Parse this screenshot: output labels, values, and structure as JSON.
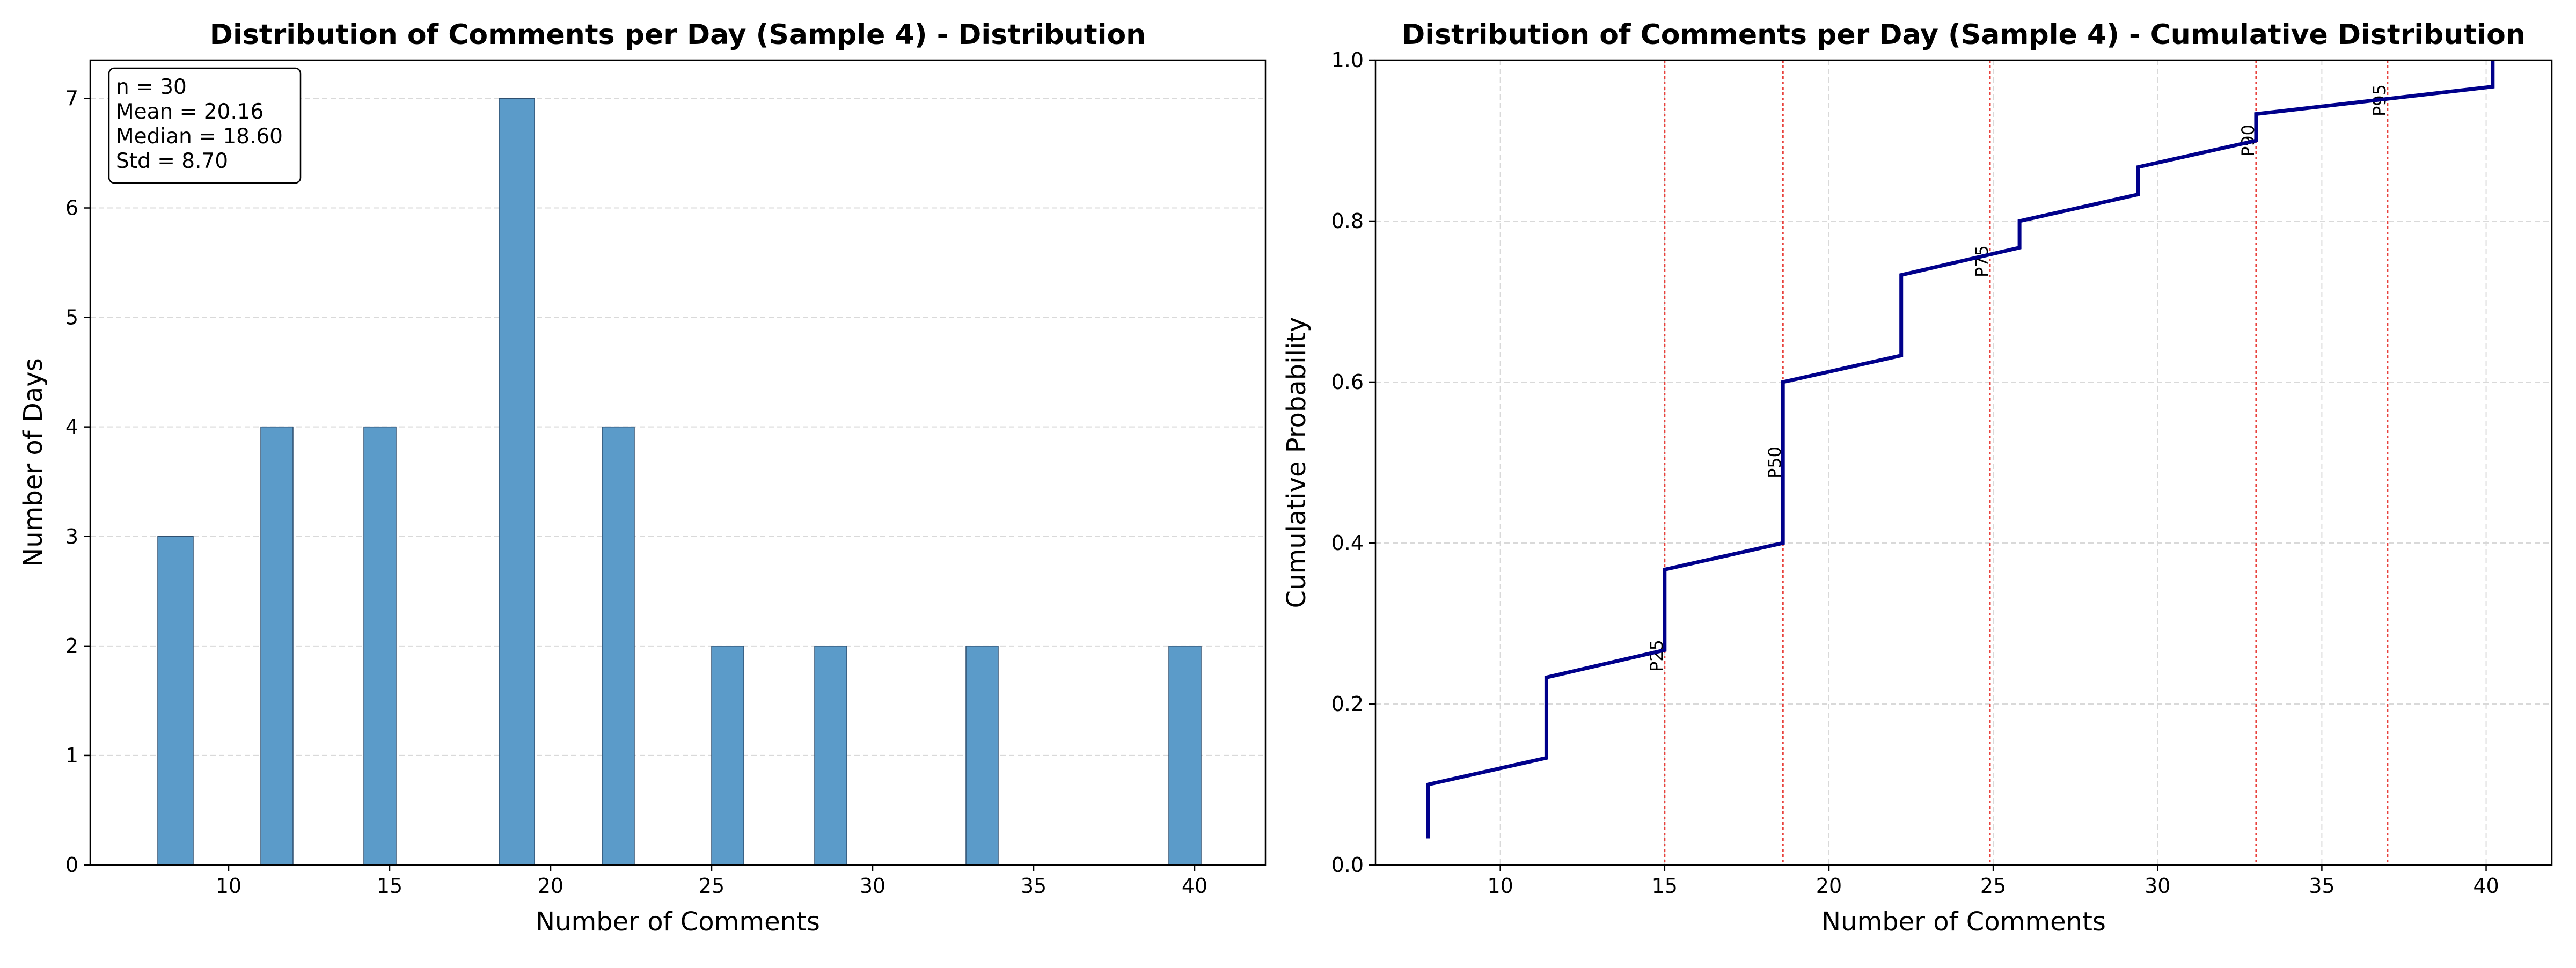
{
  "chart_data": [
    {
      "type": "bar",
      "title": "Distribution of Comments per Day (Sample 4) - Distribution",
      "xlabel": "Number of Comments",
      "ylabel": "Number of Days",
      "xlim": [
        5.7,
        42.2
      ],
      "ylim": [
        0,
        7.35
      ],
      "xticks": [
        10,
        15,
        20,
        25,
        30,
        35,
        40
      ],
      "yticks": [
        0,
        1,
        2,
        3,
        4,
        5,
        6,
        7
      ],
      "grid": "y",
      "bar_color": "#5b9bc9",
      "bins": [
        {
          "from": 7.8,
          "to": 8.9,
          "count": 3
        },
        {
          "from": 11.0,
          "to": 12.0,
          "count": 4
        },
        {
          "from": 14.2,
          "to": 15.2,
          "count": 4
        },
        {
          "from": 18.4,
          "to": 19.5,
          "count": 7
        },
        {
          "from": 21.6,
          "to": 22.6,
          "count": 4
        },
        {
          "from": 25.0,
          "to": 26.0,
          "count": 2
        },
        {
          "from": 28.2,
          "to": 29.2,
          "count": 2
        },
        {
          "from": 32.9,
          "to": 33.9,
          "count": 2
        },
        {
          "from": 39.2,
          "to": 40.2,
          "count": 2
        }
      ],
      "stats_box": [
        "n = 30",
        "Mean = 20.16",
        "Median = 18.60",
        "Std = 8.70"
      ],
      "stats_box_position": "top-left"
    },
    {
      "type": "line",
      "step": true,
      "title": "Distribution of Comments per Day (Sample 4) - Cumulative Distribution",
      "xlabel": "Number of Comments",
      "ylabel": "Cumulative Probability",
      "xlim": [
        6.2,
        42.0
      ],
      "ylim": [
        0,
        1.0
      ],
      "xticks": [
        10,
        15,
        20,
        25,
        30,
        35,
        40
      ],
      "yticks": [
        0.0,
        0.2,
        0.4,
        0.6,
        0.8,
        1.0
      ],
      "grid": "both",
      "line_color": "#00008b",
      "points": [
        {
          "x": 7.8,
          "y": 0.033
        },
        {
          "x": 7.8,
          "y": 0.1
        },
        {
          "x": 11.4,
          "y": 0.133
        },
        {
          "x": 11.4,
          "y": 0.233
        },
        {
          "x": 15.0,
          "y": 0.267
        },
        {
          "x": 15.0,
          "y": 0.367
        },
        {
          "x": 18.6,
          "y": 0.4
        },
        {
          "x": 18.6,
          "y": 0.6
        },
        {
          "x": 22.2,
          "y": 0.633
        },
        {
          "x": 22.2,
          "y": 0.733
        },
        {
          "x": 25.8,
          "y": 0.767
        },
        {
          "x": 25.8,
          "y": 0.8
        },
        {
          "x": 29.4,
          "y": 0.833
        },
        {
          "x": 29.4,
          "y": 0.867
        },
        {
          "x": 33.0,
          "y": 0.9
        },
        {
          "x": 33.0,
          "y": 0.933
        },
        {
          "x": 40.2,
          "y": 0.967
        },
        {
          "x": 40.2,
          "y": 1.0
        }
      ],
      "percentile_color": "#e8413c",
      "percentiles": [
        {
          "label": "P25",
          "x": 15.0,
          "label_y": 0.26
        },
        {
          "label": "P50",
          "x": 18.6,
          "label_y": 0.5
        },
        {
          "label": "P75",
          "x": 24.9,
          "label_y": 0.75
        },
        {
          "label": "P90",
          "x": 33.0,
          "label_y": 0.9
        },
        {
          "label": "P95",
          "x": 37.0,
          "label_y": 0.95
        }
      ]
    }
  ]
}
